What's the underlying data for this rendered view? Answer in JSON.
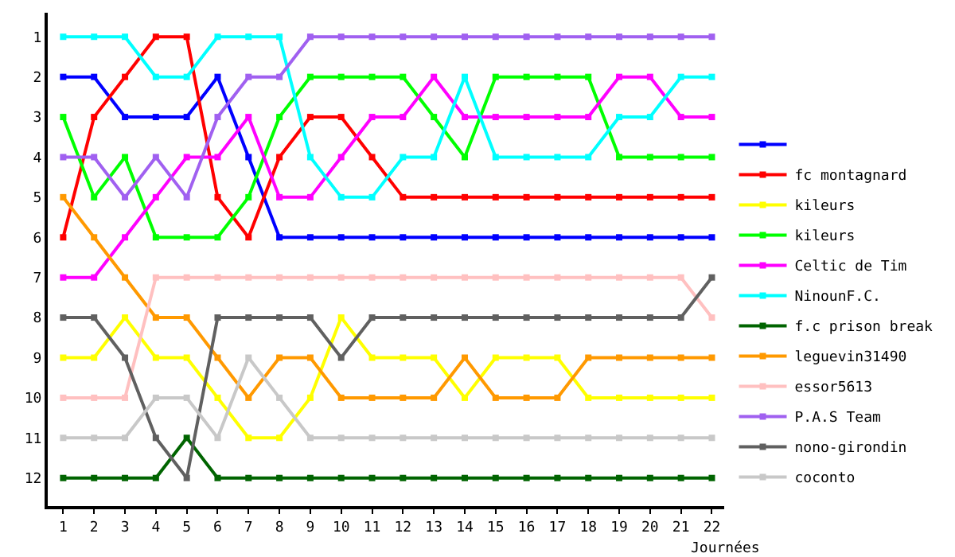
{
  "chart_data": {
    "type": "line",
    "xlabel": "Journées",
    "x": [
      1,
      2,
      3,
      4,
      5,
      6,
      7,
      8,
      9,
      10,
      11,
      12,
      13,
      14,
      15,
      16,
      17,
      18,
      19,
      20,
      21,
      22
    ],
    "xlim": [
      0.5,
      22.4
    ],
    "xticks": [
      1,
      2,
      3,
      4,
      5,
      6,
      7,
      8,
      9,
      10,
      11,
      12,
      13,
      14,
      15,
      16,
      17,
      18,
      19,
      20,
      21,
      22
    ],
    "ylim": [
      12.7,
      0.4
    ],
    "yticks": [
      1,
      2,
      3,
      4,
      5,
      6,
      7,
      8,
      9,
      10,
      11,
      12
    ],
    "grid": false,
    "legend": "right",
    "marker": "square",
    "line_style": "solid",
    "series": [
      {
        "color": "#0000ff",
        "values": [
          2,
          2,
          3,
          3,
          3,
          2,
          4,
          6,
          6,
          6,
          6,
          6,
          6,
          6,
          6,
          6,
          6,
          6,
          6,
          6,
          6,
          6
        ]
      },
      {
        "name": "fc montagnard",
        "color": "#ff0000",
        "values": [
          6,
          3,
          2,
          1,
          1,
          5,
          6,
          4,
          3,
          3,
          4,
          5,
          5,
          5,
          5,
          5,
          5,
          5,
          5,
          5,
          5,
          5
        ]
      },
      {
        "name": "kileurs",
        "color": "#ffff00",
        "values": [
          9,
          9,
          8,
          9,
          9,
          10,
          11,
          11,
          10,
          8,
          9,
          9,
          9,
          10,
          9,
          9,
          9,
          10,
          10,
          10,
          10,
          10
        ]
      },
      {
        "name": "kileurs",
        "color": "#00ff00",
        "values": [
          3,
          5,
          4,
          6,
          6,
          6,
          5,
          3,
          2,
          2,
          2,
          2,
          3,
          4,
          2,
          2,
          2,
          2,
          4,
          4,
          4,
          4
        ]
      },
      {
        "name": "Celtic de Tim",
        "color": "#ff00ff",
        "values": [
          7,
          7,
          6,
          5,
          4,
          4,
          3,
          5,
          5,
          4,
          3,
          3,
          2,
          3,
          3,
          3,
          3,
          3,
          2,
          2,
          3,
          3
        ]
      },
      {
        "name": "NinounF.C.",
        "color": "#00ffff",
        "values": [
          1,
          1,
          1,
          2,
          2,
          1,
          1,
          1,
          4,
          5,
          5,
          4,
          4,
          2,
          4,
          4,
          4,
          4,
          3,
          3,
          2,
          2
        ]
      },
      {
        "name": "f.c prison break",
        "color": "#006400",
        "values": [
          12,
          12,
          12,
          12,
          11,
          12,
          12,
          12,
          12,
          12,
          12,
          12,
          12,
          12,
          12,
          12,
          12,
          12,
          12,
          12,
          12,
          12
        ]
      },
      {
        "name": "leguevin31490",
        "color": "#ff9900",
        "values": [
          5,
          6,
          7,
          8,
          8,
          9,
          10,
          9,
          9,
          10,
          10,
          10,
          10,
          9,
          10,
          10,
          10,
          9,
          9,
          9,
          9,
          9
        ]
      },
      {
        "name": "essor5613",
        "color": "#ffc0c0",
        "values": [
          10,
          10,
          10,
          7,
          7,
          7,
          7,
          7,
          7,
          7,
          7,
          7,
          7,
          7,
          7,
          7,
          7,
          7,
          7,
          7,
          7,
          8
        ]
      },
      {
        "name": "P.A.S Team",
        "color": "#a060f0",
        "values": [
          4,
          4,
          5,
          4,
          5,
          3,
          2,
          2,
          1,
          1,
          1,
          1,
          1,
          1,
          1,
          1,
          1,
          1,
          1,
          1,
          1,
          1
        ]
      },
      {
        "name": "nono-girondin",
        "color": "#606060",
        "values": [
          8,
          8,
          9,
          11,
          12,
          8,
          8,
          8,
          8,
          9,
          8,
          8,
          8,
          8,
          8,
          8,
          8,
          8,
          8,
          8,
          8,
          7
        ]
      },
      {
        "name": "coconto",
        "color": "#c8c8c8",
        "values": [
          11,
          11,
          11,
          10,
          10,
          11,
          9,
          10,
          11,
          11,
          11,
          11,
          11,
          11,
          11,
          11,
          11,
          11,
          11,
          11,
          11,
          11
        ]
      }
    ]
  }
}
